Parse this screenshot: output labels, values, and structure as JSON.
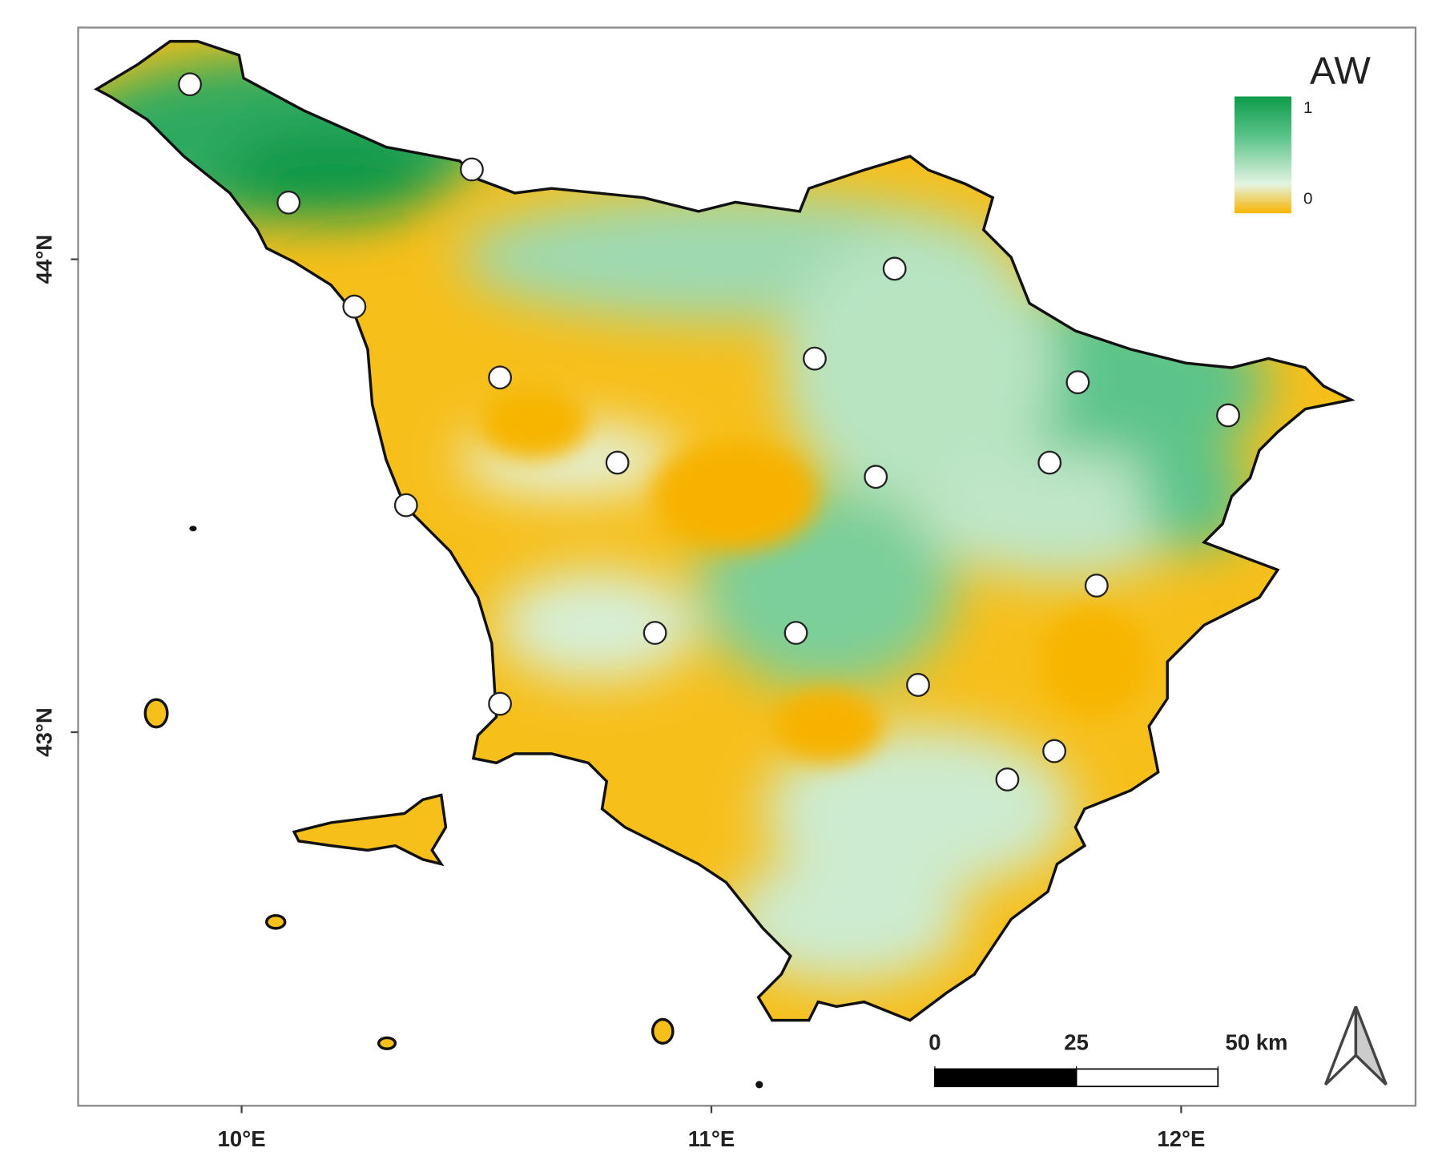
{
  "chart_data": {
    "type": "map",
    "legend_title": "AW",
    "legend_ticks": [
      1,
      0
    ],
    "xlim": [
      9.652,
      12.499
    ],
    "ylim": [
      42.21,
      44.49
    ],
    "xticks": [
      {
        "value": 10,
        "label": "10°E"
      },
      {
        "value": 11,
        "label": "11°E"
      },
      {
        "value": 12,
        "label": "12°E"
      }
    ],
    "yticks": [
      {
        "value": 44,
        "label": "44°N"
      },
      {
        "value": 43,
        "label": "43°N"
      }
    ],
    "stations": {
      "lon": [
        9.89,
        10.49,
        10.1,
        11.39,
        10.24,
        11.22,
        10.55,
        11.78,
        12.1,
        10.8,
        11.72,
        11.35,
        10.35,
        11.82,
        10.88,
        11.18,
        11.44,
        10.55,
        11.73,
        11.63
      ],
      "lat": [
        44.37,
        44.19,
        44.12,
        43.98,
        43.9,
        43.79,
        43.75,
        43.74,
        43.67,
        43.57,
        43.57,
        43.54,
        43.48,
        43.31,
        43.21,
        43.21,
        43.1,
        43.06,
        42.96,
        42.9
      ]
    },
    "scale_bar": {
      "ticks": [
        0,
        25,
        {
          "value": 50,
          "label": "50 km"
        }
      ]
    }
  }
}
